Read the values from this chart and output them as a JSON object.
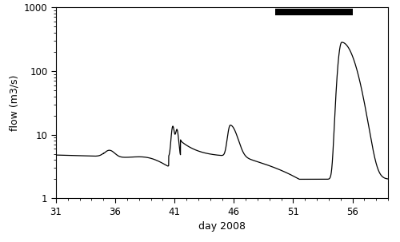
{
  "title": "",
  "xlabel": "day 2008",
  "ylabel": "flow (m3/s)",
  "xlim": [
    31,
    59
  ],
  "ylim": [
    1,
    1000
  ],
  "xticks": [
    31,
    36,
    41,
    46,
    51,
    56
  ],
  "yticks": [
    1,
    10,
    100,
    1000
  ],
  "ytick_labels": [
    "1",
    "10",
    "100",
    "1000"
  ],
  "line_color": "#000000",
  "line_width": 0.9,
  "bar_x_start": 49.5,
  "bar_x_end": 56.0,
  "bar_y": 850,
  "bar_color": "#000000",
  "bar_linewidth": 6,
  "background_color": "#ffffff"
}
